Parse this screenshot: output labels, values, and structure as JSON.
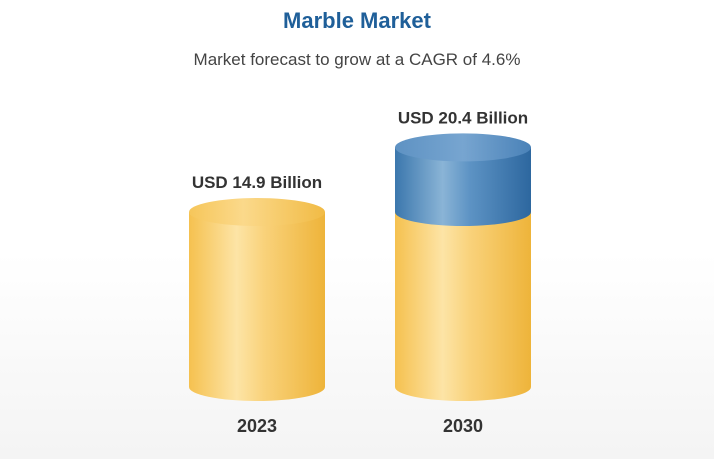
{
  "title": "Marble Market",
  "subtitle": "Market forecast to grow at a CAGR of 4.6%",
  "colors": {
    "title": "#1f5f99",
    "base": "#f2c04e",
    "growth": "#3f7db5"
  },
  "chart_data": {
    "type": "bar",
    "categories": [
      "2023",
      "2030"
    ],
    "values": [
      14.9,
      20.4
    ],
    "value_labels": [
      "USD 14.9 Billion",
      "USD 20.4 Billion"
    ],
    "title": "Marble Market",
    "subtitle": "Market forecast to grow at a CAGR of 4.6%",
    "xlabel": "",
    "ylabel": "",
    "grid": false,
    "legend": "none"
  }
}
